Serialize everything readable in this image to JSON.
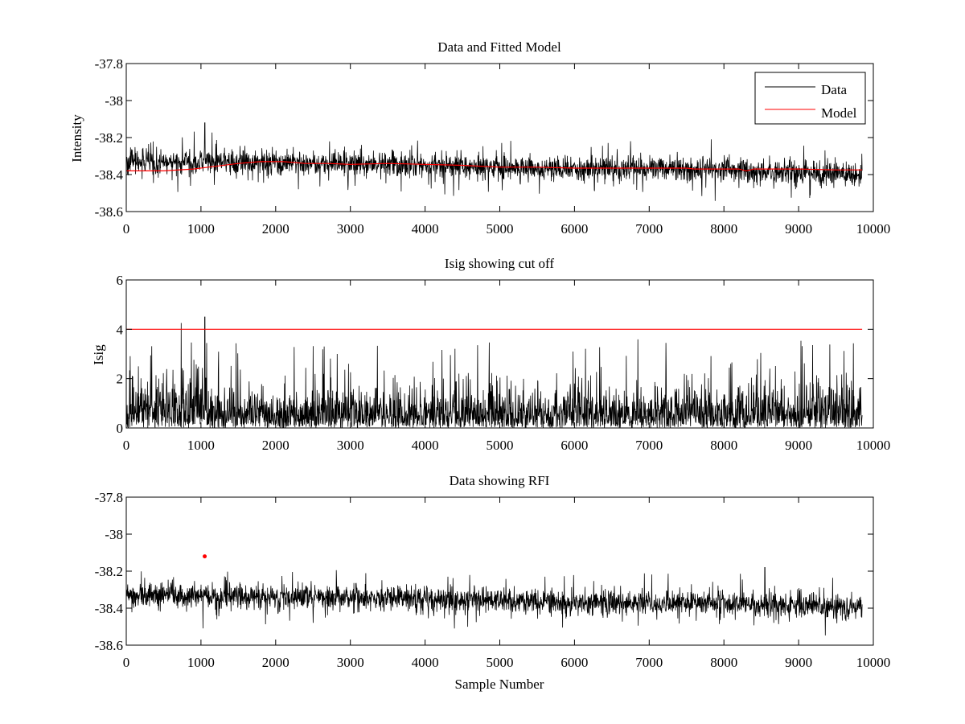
{
  "colors": {
    "data": "#000000",
    "model": "#ff0000",
    "background": "#ffffff",
    "axes": "#000000"
  },
  "chart_data": [
    {
      "type": "line",
      "title": "Data and Fitted Model",
      "xlabel": "",
      "ylabel": "Intensity",
      "xlim": [
        0,
        10000
      ],
      "ylim": [
        -38.6,
        -37.8
      ],
      "xticks": [
        0,
        1000,
        2000,
        3000,
        4000,
        5000,
        6000,
        7000,
        8000,
        9000,
        10000
      ],
      "xtick_labels": [
        "0",
        "1000",
        "2000",
        "3000",
        "4000",
        "5000",
        "6000",
        "7000",
        "8000",
        "9000",
        "10000"
      ],
      "yticks": [
        -37.8,
        -38.0,
        -38.2,
        -38.4,
        -38.6
      ],
      "ytick_labels": [
        "-37.8",
        "-38",
        "-38.2",
        "-38.4",
        "-38.6"
      ],
      "legend": {
        "location": "top-right",
        "entries": [
          "Data",
          "Model"
        ]
      },
      "series": [
        {
          "name": "Data",
          "color": "#000000",
          "style": "noise-band",
          "n_samples": 9850,
          "x_range": [
            0,
            9850
          ],
          "center_x": [
            0,
            1000,
            2000,
            3000,
            4000,
            5000,
            6000,
            7000,
            8000,
            9000,
            9850
          ],
          "center_y": [
            -38.33,
            -38.33,
            -38.34,
            -38.34,
            -38.35,
            -38.36,
            -38.37,
            -38.37,
            -38.37,
            -38.39,
            -38.4
          ],
          "core_amplitude": 0.06,
          "spike_amplitude": 0.12,
          "max_value": -38.12,
          "max_at": 1050
        },
        {
          "name": "Model",
          "color": "#ff0000",
          "x": [
            0,
            500,
            900,
            1100,
            1500,
            1800,
            2100,
            2400,
            2700,
            3000,
            3500,
            4000,
            4500,
            5000,
            5500,
            6000,
            6500,
            7000,
            7500,
            7600,
            7650,
            8000,
            8200,
            8300,
            8400,
            9000,
            9500,
            9850
          ],
          "y": [
            -38.38,
            -38.38,
            -38.37,
            -38.36,
            -38.34,
            -38.33,
            -38.33,
            -38.34,
            -38.34,
            -38.345,
            -38.34,
            -38.345,
            -38.35,
            -38.36,
            -38.36,
            -38.365,
            -38.365,
            -38.365,
            -38.365,
            -38.37,
            -38.37,
            -38.37,
            -38.37,
            -38.38,
            -38.37,
            -38.37,
            -38.375,
            -38.375
          ]
        }
      ]
    },
    {
      "type": "line",
      "title": "Isig showing cut off",
      "xlabel": "",
      "ylabel": "Isig",
      "xlim": [
        0,
        10000
      ],
      "ylim": [
        0,
        6
      ],
      "xticks": [
        0,
        1000,
        2000,
        3000,
        4000,
        5000,
        6000,
        7000,
        8000,
        9000,
        10000
      ],
      "xtick_labels": [
        "0",
        "1000",
        "2000",
        "3000",
        "4000",
        "5000",
        "6000",
        "7000",
        "8000",
        "9000",
        "10000"
      ],
      "yticks": [
        0,
        2,
        4,
        6
      ],
      "ytick_labels": [
        "0",
        "2",
        "4",
        "6"
      ],
      "series": [
        {
          "name": "Isig",
          "color": "#000000",
          "style": "abs-noise",
          "n_samples": 9850,
          "x_range": [
            0,
            9850
          ],
          "typical_max": 2.0,
          "spike_max": 3.6,
          "max_value": 4.5,
          "max_at": 1050
        },
        {
          "name": "Cut off",
          "color": "#ff0000",
          "x": [
            0,
            9850
          ],
          "y": [
            4,
            4
          ]
        }
      ]
    },
    {
      "type": "line",
      "title": "Data showing RFI",
      "xlabel": "Sample Number",
      "ylabel": "",
      "xlim": [
        0,
        10000
      ],
      "ylim": [
        -38.6,
        -37.8
      ],
      "xticks": [
        0,
        1000,
        2000,
        3000,
        4000,
        5000,
        6000,
        7000,
        8000,
        9000,
        10000
      ],
      "xtick_labels": [
        "0",
        "1000",
        "2000",
        "3000",
        "4000",
        "5000",
        "6000",
        "7000",
        "8000",
        "9000",
        "10000"
      ],
      "yticks": [
        -37.8,
        -38.0,
        -38.2,
        -38.4,
        -38.6
      ],
      "ytick_labels": [
        "-37.8",
        "-38",
        "-38.2",
        "-38.4",
        "-38.6"
      ],
      "series": [
        {
          "name": "Data",
          "color": "#000000",
          "style": "noise-band",
          "n_samples": 9850,
          "x_range": [
            0,
            9850
          ],
          "center_x": [
            0,
            1000,
            2000,
            3000,
            4000,
            5000,
            6000,
            7000,
            8000,
            9000,
            9850
          ],
          "center_y": [
            -38.33,
            -38.33,
            -38.34,
            -38.34,
            -38.35,
            -38.36,
            -38.37,
            -38.37,
            -38.37,
            -38.39,
            -38.4
          ],
          "core_amplitude": 0.06,
          "spike_amplitude": 0.12,
          "max_value": -38.18,
          "max_at": 8550
        },
        {
          "name": "RFI",
          "color": "#ff0000",
          "type": "scatter",
          "x": [
            1050
          ],
          "y": [
            -38.12
          ]
        }
      ]
    }
  ]
}
